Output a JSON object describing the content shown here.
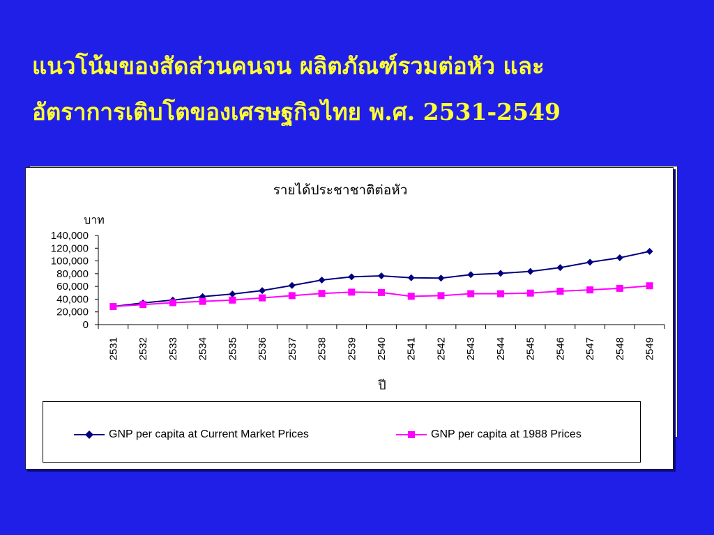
{
  "slide": {
    "title_line1": "แนวโน้มของสัดส่วนคนจน ผลิตภัณฑ์รวมต่อหัว และ",
    "title_line2": "อัตราการเติบโตของเศรษฐกิจไทย พ.ศ. 2531-2549",
    "title_color": "#ffff33",
    "background_color": "#1f1fe8"
  },
  "chart_data": {
    "type": "line",
    "title": "รายได้ประชาชาติต่อหัว",
    "ylabel": "บาท",
    "xlabel": "ปี",
    "ylim": [
      0,
      140000
    ],
    "yticks": [
      "0",
      "20,000",
      "40,000",
      "60,000",
      "80,000",
      "100,000",
      "120,000",
      "140,000"
    ],
    "x": [
      "2531",
      "2532",
      "2533",
      "2534",
      "2535",
      "2536",
      "2537",
      "2538",
      "2539",
      "2540",
      "2541",
      "2542",
      "2543",
      "2544",
      "2545",
      "2546",
      "2547",
      "2548",
      "2549"
    ],
    "grid": false,
    "legend_position": "bottom",
    "series": [
      {
        "name": "GNP per capita  at Current Market Prices",
        "color": "#00007f",
        "marker": "diamond",
        "values": [
          28500,
          34000,
          38500,
          44000,
          48000,
          53500,
          61500,
          70000,
          75000,
          76500,
          73500,
          73000,
          78500,
          80500,
          83500,
          89500,
          98000,
          105000,
          115000
        ]
      },
      {
        "name": "GNP per capita at 1988 Prices",
        "color": "#ff00ff",
        "marker": "square",
        "values": [
          28500,
          31500,
          34500,
          36500,
          38500,
          42000,
          45500,
          49000,
          51000,
          50500,
          44500,
          45500,
          48500,
          48500,
          49500,
          52500,
          54500,
          57000,
          61000
        ]
      }
    ]
  }
}
